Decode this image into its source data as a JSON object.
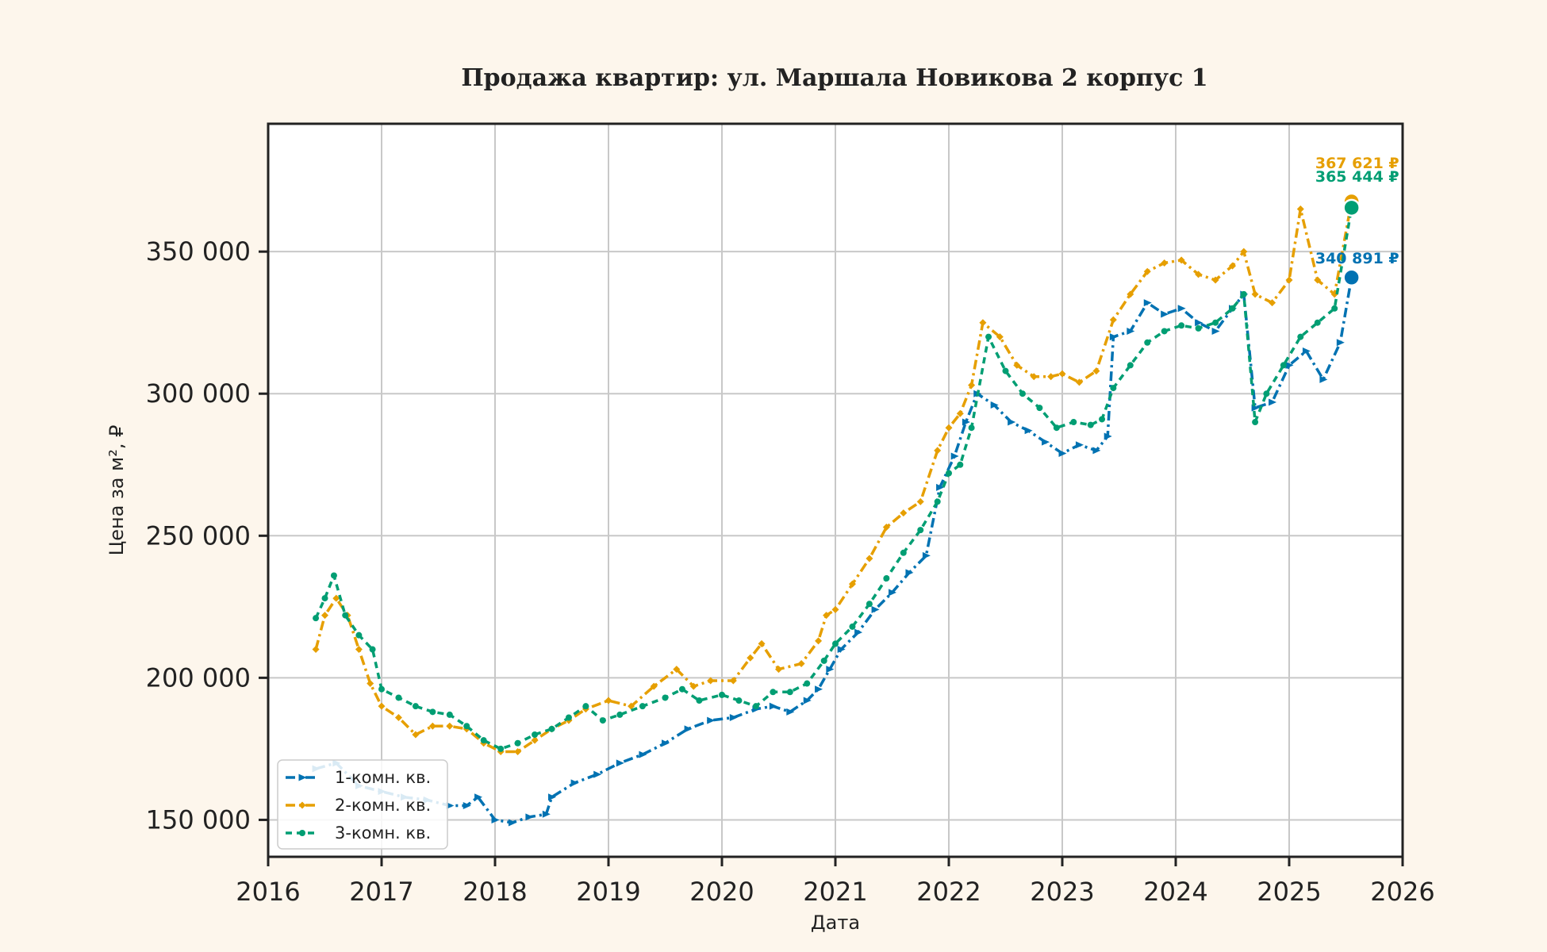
{
  "colors": {
    "background": "#fdf6ec",
    "plot_background": "#ffffff",
    "grid": "#c8c8c8",
    "axis": "#222222"
  },
  "chart_data": {
    "type": "line",
    "title": "Продажа квартир: ул. Маршала Новикова 2 корпус 1",
    "xlabel": "Дата",
    "ylabel": "Цена за м², ₽",
    "xlim": [
      2016.0,
      2026.0
    ],
    "ylim": [
      137000,
      395000
    ],
    "xticks": [
      2016,
      2017,
      2018,
      2019,
      2020,
      2021,
      2022,
      2023,
      2024,
      2025,
      2026
    ],
    "xtick_labels": [
      "2016",
      "2017",
      "2018",
      "2019",
      "2020",
      "2021",
      "2022",
      "2023",
      "2024",
      "2025",
      "2026"
    ],
    "yticks": [
      150000,
      200000,
      250000,
      300000,
      350000
    ],
    "ytick_labels": [
      "150 000",
      "200 000",
      "250 000",
      "300 000",
      "350 000"
    ],
    "grid": true,
    "legend_position": "lower-left",
    "series": [
      {
        "name": "1-комн. кв.",
        "color": "#0072b2",
        "marker": "triangle-right",
        "end_label": "340 891 ₽",
        "x": [
          2016.42,
          2016.6,
          2016.8,
          2017.0,
          2017.2,
          2017.4,
          2017.6,
          2017.75,
          2017.85,
          2018.0,
          2018.15,
          2018.3,
          2018.45,
          2018.5,
          2018.7,
          2018.9,
          2019.1,
          2019.3,
          2019.5,
          2019.7,
          2019.9,
          2020.1,
          2020.3,
          2020.45,
          2020.6,
          2020.75,
          2020.85,
          2020.95,
          2021.05,
          2021.2,
          2021.35,
          2021.5,
          2021.65,
          2021.8,
          2021.92,
          2022.05,
          2022.15,
          2022.25,
          2022.4,
          2022.55,
          2022.7,
          2022.85,
          2023.0,
          2023.15,
          2023.3,
          2023.4,
          2023.45,
          2023.6,
          2023.75,
          2023.9,
          2024.05,
          2024.2,
          2024.35,
          2024.5,
          2024.6,
          2024.7,
          2024.85,
          2025.0,
          2025.15,
          2025.3,
          2025.45,
          2025.55
        ],
        "y": [
          168000,
          170000,
          162000,
          160000,
          158000,
          157000,
          155000,
          155000,
          158000,
          150000,
          149000,
          151000,
          152000,
          158000,
          163000,
          166000,
          170000,
          173000,
          177000,
          182000,
          185000,
          186000,
          189000,
          190000,
          188000,
          192000,
          196000,
          203000,
          210000,
          216000,
          224000,
          230000,
          237000,
          243000,
          267000,
          278000,
          290000,
          300000,
          296000,
          290000,
          287000,
          283000,
          279000,
          282000,
          280000,
          285000,
          320000,
          322000,
          332000,
          328000,
          330000,
          325000,
          322000,
          330000,
          335000,
          295000,
          297000,
          310000,
          315000,
          305000,
          318000,
          340891
        ]
      },
      {
        "name": "2-комн. кв.",
        "color": "#e69f00",
        "marker": "diamond",
        "end_label": "367 621 ₽",
        "x": [
          2016.42,
          2016.5,
          2016.6,
          2016.7,
          2016.8,
          2016.9,
          2017.0,
          2017.15,
          2017.3,
          2017.45,
          2017.6,
          2017.75,
          2017.9,
          2018.05,
          2018.2,
          2018.35,
          2018.5,
          2018.65,
          2018.8,
          2019.0,
          2019.2,
          2019.4,
          2019.6,
          2019.75,
          2019.9,
          2020.1,
          2020.25,
          2020.35,
          2020.5,
          2020.7,
          2020.85,
          2020.92,
          2021.0,
          2021.15,
          2021.3,
          2021.45,
          2021.6,
          2021.75,
          2021.9,
          2022.0,
          2022.1,
          2022.2,
          2022.3,
          2022.45,
          2022.6,
          2022.75,
          2022.9,
          2023.0,
          2023.15,
          2023.3,
          2023.45,
          2023.6,
          2023.75,
          2023.9,
          2024.05,
          2024.2,
          2024.35,
          2024.5,
          2024.6,
          2024.7,
          2024.85,
          2025.0,
          2025.1,
          2025.25,
          2025.4,
          2025.55
        ],
        "y": [
          210000,
          222000,
          228000,
          222000,
          210000,
          198000,
          190000,
          186000,
          180000,
          183000,
          183000,
          182000,
          177000,
          174000,
          174000,
          178000,
          182000,
          185000,
          189000,
          192000,
          190000,
          197000,
          203000,
          197000,
          199000,
          199000,
          207000,
          212000,
          203000,
          205000,
          213000,
          222000,
          224000,
          233000,
          242000,
          253000,
          258000,
          262000,
          280000,
          288000,
          293000,
          303000,
          325000,
          320000,
          310000,
          306000,
          306000,
          307000,
          304000,
          308000,
          326000,
          335000,
          343000,
          346000,
          347000,
          342000,
          340000,
          345000,
          350000,
          335000,
          332000,
          340000,
          365000,
          340000,
          335000,
          367621
        ]
      },
      {
        "name": "3-комн. кв.",
        "color": "#009e73",
        "marker": "circle",
        "end_label": "365 444 ₽",
        "x": [
          2016.42,
          2016.5,
          2016.58,
          2016.68,
          2016.8,
          2016.92,
          2017.0,
          2017.15,
          2017.3,
          2017.45,
          2017.6,
          2017.75,
          2017.9,
          2018.05,
          2018.2,
          2018.35,
          2018.5,
          2018.65,
          2018.8,
          2018.95,
          2019.1,
          2019.3,
          2019.5,
          2019.65,
          2019.8,
          2020.0,
          2020.15,
          2020.3,
          2020.45,
          2020.6,
          2020.75,
          2020.9,
          2021.0,
          2021.15,
          2021.3,
          2021.45,
          2021.6,
          2021.75,
          2021.9,
          2022.0,
          2022.1,
          2022.2,
          2022.35,
          2022.5,
          2022.65,
          2022.8,
          2022.95,
          2023.1,
          2023.25,
          2023.35,
          2023.45,
          2023.6,
          2023.75,
          2023.9,
          2024.05,
          2024.2,
          2024.35,
          2024.5,
          2024.6,
          2024.7,
          2024.8,
          2024.95,
          2025.1,
          2025.25,
          2025.4,
          2025.55
        ],
        "y": [
          221000,
          228000,
          236000,
          222000,
          215000,
          210000,
          196000,
          193000,
          190000,
          188000,
          187000,
          183000,
          178000,
          175000,
          177000,
          180000,
          182000,
          186000,
          190000,
          185000,
          187000,
          190000,
          193000,
          196000,
          192000,
          194000,
          192000,
          190000,
          195000,
          195000,
          198000,
          206000,
          212000,
          218000,
          226000,
          235000,
          244000,
          252000,
          262000,
          272000,
          275000,
          288000,
          320000,
          308000,
          300000,
          295000,
          288000,
          290000,
          289000,
          291000,
          302000,
          310000,
          318000,
          322000,
          324000,
          323000,
          325000,
          330000,
          335000,
          290000,
          300000,
          310000,
          320000,
          325000,
          330000,
          365444
        ]
      }
    ]
  }
}
